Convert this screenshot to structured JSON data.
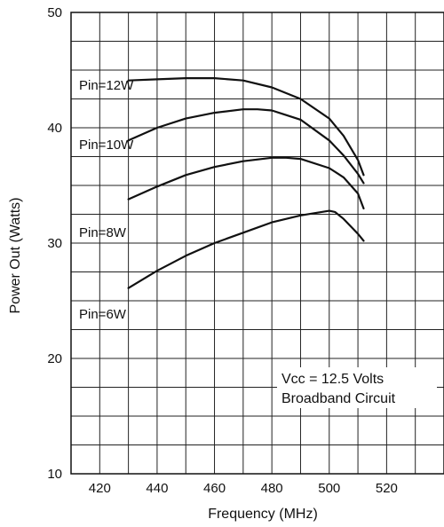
{
  "chart_data": {
    "type": "line",
    "xlabel": "Frequency (MHz)",
    "ylabel": "Power Out (Watts)",
    "xlim": [
      410,
      540
    ],
    "ylim": [
      10,
      50
    ],
    "x_ticks": [
      420,
      440,
      460,
      480,
      500,
      520
    ],
    "y_ticks": [
      10,
      20,
      30,
      40,
      50
    ],
    "grid": true,
    "x_minor_step": 10,
    "y_minor_step": 2.5,
    "line_color": "#111111",
    "annotation": [
      "Vcc = 12.5 Volts",
      "Broadband Circuit"
    ],
    "series": [
      {
        "name": "Pin=12W",
        "x": [
          430,
          440,
          450,
          460,
          470,
          480,
          490,
          500,
          505,
          510,
          512
        ],
        "y": [
          44.1,
          44.2,
          44.3,
          44.3,
          44.1,
          43.5,
          42.5,
          40.8,
          39.3,
          37.2,
          35.9
        ]
      },
      {
        "name": "Pin=10W",
        "x": [
          430,
          440,
          450,
          460,
          470,
          475,
          480,
          490,
          500,
          505,
          510,
          512
        ],
        "y": [
          38.9,
          40.0,
          40.8,
          41.3,
          41.6,
          41.6,
          41.5,
          40.7,
          38.9,
          37.6,
          36.0,
          35.2
        ]
      },
      {
        "name": "Pin=8W",
        "x": [
          430,
          440,
          450,
          460,
          470,
          480,
          485,
          490,
          500,
          505,
          510,
          512
        ],
        "y": [
          33.8,
          34.9,
          35.9,
          36.6,
          37.1,
          37.4,
          37.4,
          37.3,
          36.5,
          35.7,
          34.3,
          33.0
        ]
      },
      {
        "name": "Pin=6W",
        "x": [
          430,
          440,
          450,
          460,
          470,
          480,
          490,
          495,
          500,
          502,
          505,
          510,
          512
        ],
        "y": [
          26.1,
          27.6,
          28.9,
          30.0,
          30.9,
          31.8,
          32.4,
          32.6,
          32.8,
          32.7,
          32.1,
          30.8,
          30.2
        ]
      }
    ]
  }
}
